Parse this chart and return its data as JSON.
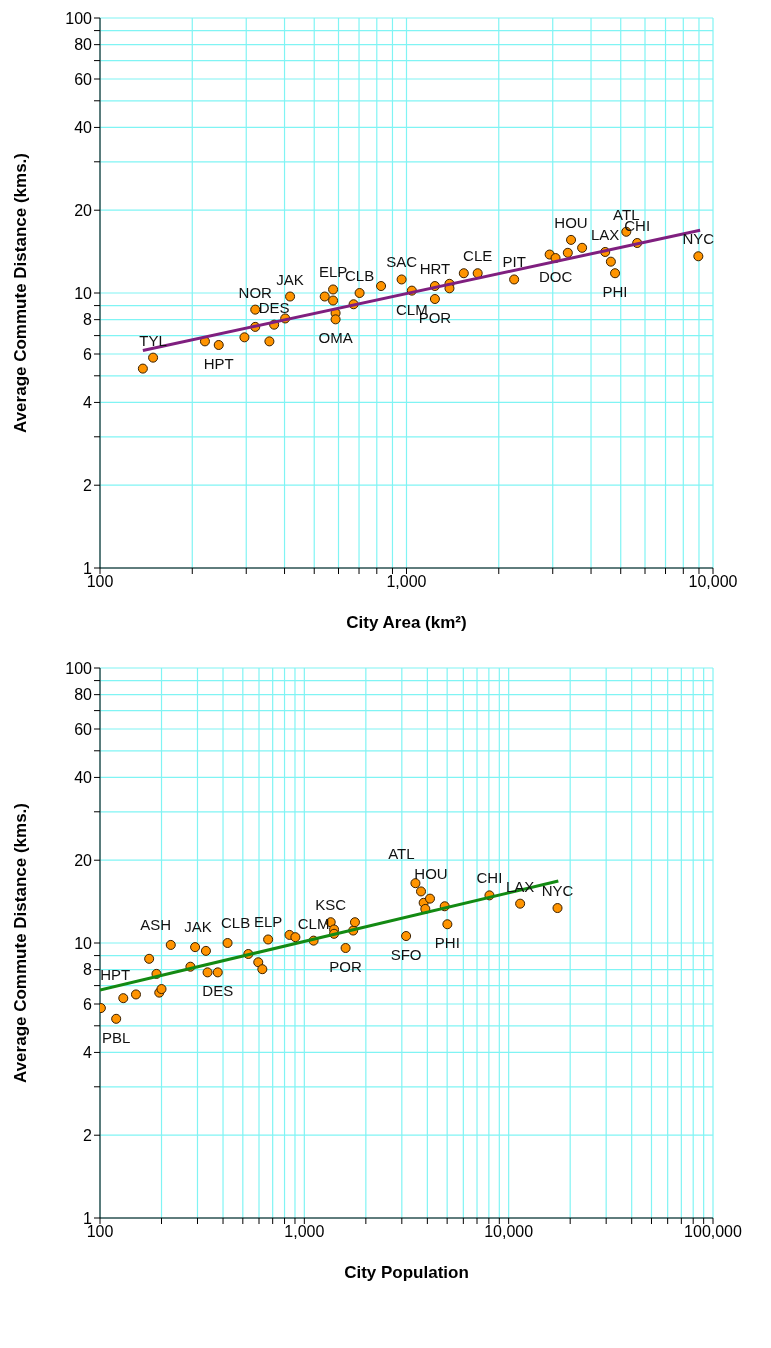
{
  "chart_data": [
    {
      "type": "scatter",
      "xlabel": "City Area (km²)",
      "ylabel": "Average Commute Distance (kms.)",
      "log": "xy",
      "grid": true,
      "marker": "circle",
      "line_style": "solid",
      "xlim": [
        100,
        10000
      ],
      "xticks": [
        100,
        {
          "value": 200,
          "label": null
        },
        {
          "value": 300,
          "label": null
        },
        {
          "value": 400,
          "label": null
        },
        {
          "value": 500,
          "label": null
        },
        {
          "value": 600,
          "label": null
        },
        {
          "value": 700,
          "label": null
        },
        {
          "value": 800,
          "label": null
        },
        {
          "value": 900,
          "label": null
        },
        {
          "value": 1000,
          "label": "1,000"
        },
        {
          "value": 2000,
          "label": null
        },
        {
          "value": 3000,
          "label": null
        },
        {
          "value": 4000,
          "label": null
        },
        {
          "value": 5000,
          "label": null
        },
        {
          "value": 6000,
          "label": null
        },
        {
          "value": 7000,
          "label": null
        },
        {
          "value": 8000,
          "label": null
        },
        {
          "value": 9000,
          "label": null
        },
        {
          "value": 10000,
          "label": "10,000"
        }
      ],
      "ylim": [
        1,
        100
      ],
      "yticks": [
        1,
        2,
        {
          "value": 3,
          "label": null
        },
        4,
        {
          "value": 5,
          "label": null
        },
        6,
        {
          "value": 7,
          "label": null
        },
        8,
        {
          "value": 9,
          "label": null
        },
        10,
        20,
        {
          "value": 30,
          "label": null
        },
        40,
        {
          "value": 50,
          "label": null
        },
        60,
        {
          "value": 70,
          "label": null
        },
        80,
        {
          "value": 90,
          "label": null
        },
        100
      ],
      "series": [
        {
          "color": "#ff9400",
          "x": [
            138,
            149,
            220,
            244,
            296,
            321,
            321,
            357,
            370,
            402,
            417,
            541,
            576,
            576,
            587,
            587,
            672,
            703,
            826,
            964,
            1041,
            1238,
            1238,
            1381,
            1381,
            1538,
            1707,
            2245,
            2931,
            3064,
            3360,
            3442,
            3741,
            4449,
            4643,
            4791,
            5213,
            5658,
            8957
          ],
          "values": [
            5.31,
            5.82,
            6.67,
            6.47,
            6.9,
            8.7,
            7.53,
            6.67,
            7.67,
            8.08,
            9.71,
            9.71,
            10.3,
            9.39,
            8.45,
            8.02,
            9.1,
            10.0,
            10.6,
            11.2,
            10.2,
            10.6,
            9.51,
            10.8,
            10.4,
            11.8,
            11.8,
            11.2,
            13.8,
            13.4,
            14.0,
            15.6,
            14.6,
            14.1,
            13.0,
            11.8,
            16.7,
            15.2,
            13.6
          ]
        },
        {
          "type": "line",
          "marker": "none",
          "color": "#7f1f7f",
          "x": [
            138,
            9078
          ],
          "values": [
            6.18,
            16.9
          ]
        }
      ],
      "annotations": [
        {
          "text": "TYL",
          "x": 149,
          "y": 5.82
        },
        {
          "text": "HPT",
          "x": 244,
          "y": 6.47
        },
        {
          "text": "NOR",
          "x": 321,
          "y": 8.7
        },
        {
          "text": "DES",
          "x": 370,
          "y": 7.67
        },
        {
          "text": "JAK",
          "x": 417,
          "y": 9.71
        },
        {
          "text": "ELP",
          "x": 576,
          "y": 10.3
        },
        {
          "text": "CLB",
          "x": 703,
          "y": 10.0
        },
        {
          "text": "OMA",
          "x": 587,
          "y": 8.02
        },
        {
          "text": "SAC",
          "x": 964,
          "y": 11.2
        },
        {
          "text": "CLM",
          "x": 1041,
          "y": 10.2
        },
        {
          "text": "HRT",
          "x": 1238,
          "y": 10.6
        },
        {
          "text": "POR",
          "x": 1238,
          "y": 9.51
        },
        {
          "text": "CLE",
          "x": 1707,
          "y": 11.8
        },
        {
          "text": "PIT",
          "x": 2245,
          "y": 11.2
        },
        {
          "text": "DOC",
          "x": 3064,
          "y": 13.4
        },
        {
          "text": "HOU",
          "x": 3442,
          "y": 15.6
        },
        {
          "text": "LAX",
          "x": 4449,
          "y": 14.1
        },
        {
          "text": "PHI",
          "x": 4791,
          "y": 11.8
        },
        {
          "text": "ATL",
          "x": 5213,
          "y": 16.7
        },
        {
          "text": "CHI",
          "x": 5658,
          "y": 15.2
        },
        {
          "text": "NYC",
          "x": 8957,
          "y": 13.6
        }
      ]
    },
    {
      "type": "scatter",
      "xlabel": "City Population",
      "ylabel": "Average Commute Distance (kms.)",
      "log": "xy",
      "grid": true,
      "marker": "circle",
      "line_style": "solid",
      "xlim": [
        100,
        100000
      ],
      "xticks": [
        100,
        {
          "value": 200,
          "label": null
        },
        {
          "value": 300,
          "label": null
        },
        {
          "value": 400,
          "label": null
        },
        {
          "value": 500,
          "label": null
        },
        {
          "value": 600,
          "label": null
        },
        {
          "value": 700,
          "label": null
        },
        {
          "value": 800,
          "label": null
        },
        {
          "value": 900,
          "label": null
        },
        {
          "value": 1000,
          "label": "1,000"
        },
        {
          "value": 2000,
          "label": null
        },
        {
          "value": 3000,
          "label": null
        },
        {
          "value": 4000,
          "label": null
        },
        {
          "value": 5000,
          "label": null
        },
        {
          "value": 6000,
          "label": null
        },
        {
          "value": 7000,
          "label": null
        },
        {
          "value": 8000,
          "label": null
        },
        {
          "value": 9000,
          "label": null
        },
        {
          "value": 10000,
          "label": "10,000"
        },
        {
          "value": 20000,
          "label": null
        },
        {
          "value": 30000,
          "label": null
        },
        {
          "value": 40000,
          "label": null
        },
        {
          "value": 50000,
          "label": null
        },
        {
          "value": 60000,
          "label": null
        },
        {
          "value": 70000,
          "label": null
        },
        {
          "value": 80000,
          "label": null
        },
        {
          "value": 90000,
          "label": null
        },
        {
          "value": 100000,
          "label": "100,000"
        }
      ],
      "ylim": [
        1,
        100
      ],
      "yticks": [
        1,
        2,
        {
          "value": 3,
          "label": null
        },
        4,
        {
          "value": 5,
          "label": null
        },
        6,
        {
          "value": 7,
          "label": null
        },
        8,
        {
          "value": 9,
          "label": null
        },
        10,
        20,
        {
          "value": 30,
          "label": null
        },
        40,
        {
          "value": 50,
          "label": null
        },
        60,
        {
          "value": 70,
          "label": null
        },
        80,
        {
          "value": 90,
          "label": null
        },
        100
      ],
      "series": [
        {
          "color": "#ff9400",
          "x": [
            101,
            120,
            130,
            150,
            174,
            189,
            195,
            200,
            222,
            277,
            292,
            330,
            336,
            377,
            421,
            532,
            595,
            623,
            665,
            846,
            904,
            1110,
            1346,
            1398,
            1398,
            1592,
            1734,
            1769,
            3148,
            3497,
            3724,
            3837,
            3909,
            4121,
            4865,
            5012,
            8054,
            11380,
            17340
          ],
          "values": [
            5.8,
            5.3,
            6.3,
            6.5,
            8.76,
            7.72,
            6.6,
            6.8,
            9.84,
            8.2,
            9.66,
            9.36,
            7.82,
            7.82,
            10.0,
            9.12,
            8.51,
            8.03,
            10.3,
            10.7,
            10.5,
            10.2,
            11.9,
            11.2,
            10.8,
            9.59,
            11.1,
            11.9,
            10.6,
            16.5,
            15.4,
            14.0,
            13.3,
            14.5,
            13.6,
            11.7,
            14.9,
            13.9,
            13.4
          ]
        },
        {
          "type": "line",
          "marker": "none",
          "color": "#138a13",
          "x": [
            100,
            17500
          ],
          "values": [
            6.75,
            16.8
          ]
        }
      ],
      "annotations": [
        {
          "text": "PBL",
          "x": 120,
          "y": 5.3
        },
        {
          "text": "HPT",
          "x": 130,
          "y": 6.3
        },
        {
          "text": "ASH",
          "x": 222,
          "y": 9.84
        },
        {
          "text": "JAK",
          "x": 292,
          "y": 9.66
        },
        {
          "text": "CLB",
          "x": 421,
          "y": 10.0
        },
        {
          "text": "DES",
          "x": 377,
          "y": 7.82
        },
        {
          "text": "ELP",
          "x": 665,
          "y": 10.3
        },
        {
          "text": "CLM",
          "x": 1110,
          "y": 10.2
        },
        {
          "text": "KSC",
          "x": 1346,
          "y": 11.9
        },
        {
          "text": "POR",
          "x": 1592,
          "y": 9.59
        },
        {
          "text": "SFO",
          "x": 3148,
          "y": 10.6
        },
        {
          "text": "ATL",
          "x": 3497,
          "y": 16.5
        },
        {
          "text": "HOU",
          "x": 3724,
          "y": 15.4
        },
        {
          "text": "PHI",
          "x": 5012,
          "y": 11.7
        },
        {
          "text": "CHI",
          "x": 8054,
          "y": 14.9
        },
        {
          "text": "LAX",
          "x": 11380,
          "y": 13.9
        },
        {
          "text": "NYC",
          "x": 17340,
          "y": 13.4
        }
      ]
    }
  ]
}
